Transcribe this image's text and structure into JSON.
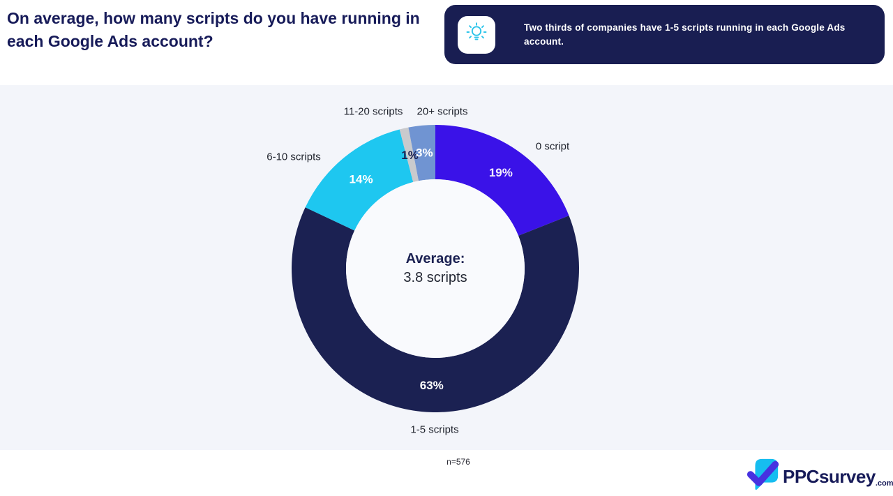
{
  "header": {
    "title_lines": [
      "On average, how many scripts do you have running in",
      "each Google Ads account?"
    ],
    "insight": {
      "icon": "lightbulb-icon",
      "text_lines": [
        "Two thirds of companies have 1-5 scripts running in each Google Ads",
        "account."
      ],
      "bg_color": "#191e52",
      "icon_color": "#2cc4ea"
    }
  },
  "chart_data": {
    "type": "pie",
    "donut": true,
    "title": "On average, how many scripts do you have running in each Google Ads account?",
    "center_label_title": "Average:",
    "center_label_value": "3.8 scripts",
    "start_angle_deg": 0,
    "direction": "clockwise",
    "background_color": "#f3f5fa",
    "hole_color": "#f9fafd",
    "slices": [
      {
        "label": "0 script",
        "value": 19,
        "pct_label": "19%",
        "color": "#3a12e8",
        "pct_label_color": "#f3effd"
      },
      {
        "label": "1-5 scripts",
        "value": 63,
        "pct_label": "63%",
        "color": "#1b2152",
        "pct_label_color": "#ffffff"
      },
      {
        "label": "6-10 scripts",
        "value": 14,
        "pct_label": "14%",
        "color": "#1ec7f0",
        "pct_label_color": "#ffffff"
      },
      {
        "label": "11-20 scripts",
        "value": 1,
        "pct_label": "1%",
        "color": "#c9cacd",
        "pct_label_color": "#1b2152"
      },
      {
        "label": "20+ scripts",
        "value": 3,
        "pct_label": "3%",
        "color": "#7094d2",
        "pct_label_color": "#ffffff"
      }
    ]
  },
  "footnote": {
    "sample_size": "n=576"
  },
  "branding": {
    "name": "PPCsurvey",
    "tld": ".com"
  }
}
